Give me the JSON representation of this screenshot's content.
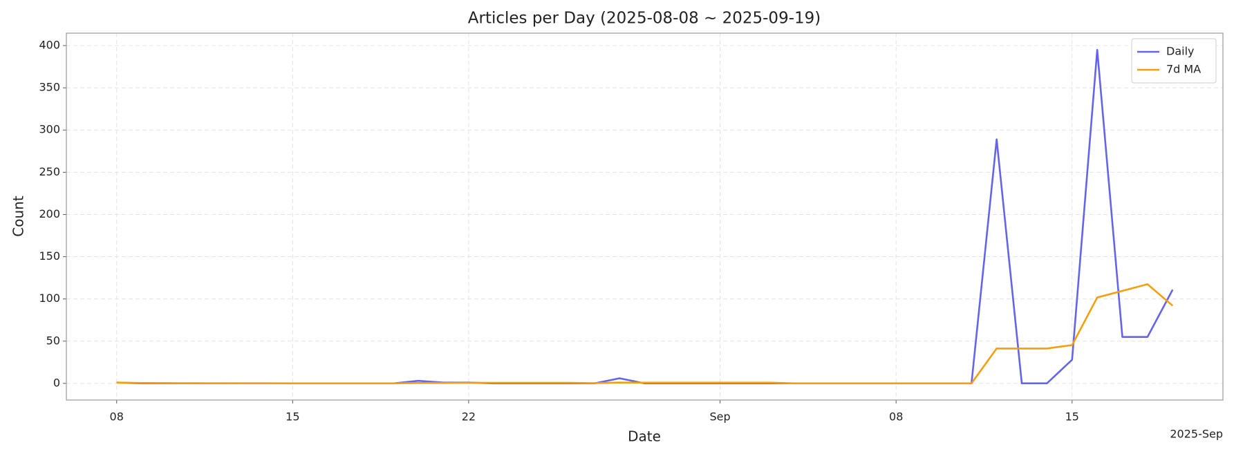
{
  "chart_data": {
    "type": "line",
    "title": "Articles per Day (2025-08-08 ~ 2025-09-19)",
    "x_label": "Date",
    "y_label": "Count",
    "x_offset_label": "2025-Sep",
    "x": [
      "2025-08-08",
      "2025-08-09",
      "2025-08-10",
      "2025-08-11",
      "2025-08-12",
      "2025-08-13",
      "2025-08-14",
      "2025-08-15",
      "2025-08-16",
      "2025-08-17",
      "2025-08-18",
      "2025-08-19",
      "2025-08-20",
      "2025-08-21",
      "2025-08-22",
      "2025-08-23",
      "2025-08-24",
      "2025-08-25",
      "2025-08-26",
      "2025-08-27",
      "2025-08-28",
      "2025-08-29",
      "2025-08-30",
      "2025-08-31",
      "2025-09-01",
      "2025-09-02",
      "2025-09-03",
      "2025-09-04",
      "2025-09-05",
      "2025-09-06",
      "2025-09-07",
      "2025-09-08",
      "2025-09-09",
      "2025-09-10",
      "2025-09-11",
      "2025-09-12",
      "2025-09-13",
      "2025-09-14",
      "2025-09-15",
      "2025-09-16",
      "2025-09-17",
      "2025-09-18",
      "2025-09-19"
    ],
    "series": [
      {
        "name": "Daily",
        "color": "#6464ea",
        "values": [
          1,
          0,
          0,
          0,
          0,
          0,
          0,
          0,
          0,
          0,
          0,
          0,
          3,
          1,
          1,
          0,
          0,
          0,
          0,
          0,
          6,
          0,
          0,
          0,
          0,
          0,
          0,
          0,
          0,
          0,
          0,
          0,
          0,
          0,
          0,
          289,
          0,
          0,
          28,
          395,
          55,
          55,
          111
        ]
      },
      {
        "name": "7d MA",
        "color": "#f59e0b",
        "values": [
          1,
          0.5,
          0.33,
          0.25,
          0.2,
          0.17,
          0.14,
          0,
          0,
          0,
          0,
          0,
          0.43,
          0.57,
          0.71,
          0.71,
          0.71,
          0.71,
          0.71,
          0.29,
          1,
          0.86,
          0.86,
          0.86,
          0.86,
          0.86,
          0.86,
          0,
          0,
          0,
          0,
          0,
          0,
          0,
          0,
          41.29,
          41.29,
          41.29,
          45.29,
          101.71,
          109.57,
          117.43,
          92
        ]
      }
    ],
    "xlim": [
      "2025-08-06",
      "2025-09-21"
    ],
    "xticks": [
      {
        "value": "2025-08-08",
        "label": "08"
      },
      {
        "value": "2025-08-15",
        "label": "15"
      },
      {
        "value": "2025-08-22",
        "label": "22"
      },
      {
        "value": "2025-09-01",
        "label": "Sep"
      },
      {
        "value": "2025-09-08",
        "label": "08"
      },
      {
        "value": "2025-09-15",
        "label": "15"
      }
    ],
    "ylim": [
      -19.75,
      414.75
    ],
    "yticks": [
      0,
      50,
      100,
      150,
      200,
      250,
      300,
      350,
      400
    ],
    "grid": true,
    "legend": "upper right"
  }
}
